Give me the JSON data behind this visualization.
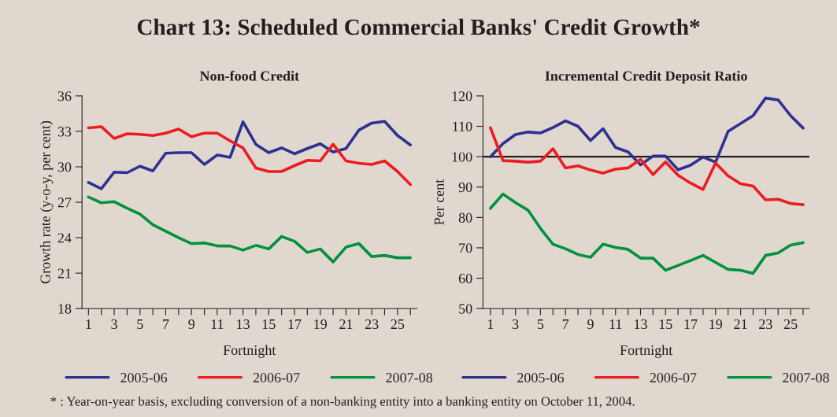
{
  "chart_data": [
    {
      "type": "line",
      "title": "Non-food Credit",
      "xlabel": "Fortnight",
      "ylabel": "Growth rate (y-o-y, per cent)",
      "annotations": [
        "Chart 13: Scheduled Commercial Banks' Credit Growth*",
        "* : Year-on-year basis, excluding conversion of a non-banking entity into a banking entity on October 11, 2004."
      ],
      "x": [
        1,
        2,
        3,
        4,
        5,
        6,
        7,
        8,
        9,
        10,
        11,
        12,
        13,
        14,
        15,
        16,
        17,
        18,
        19,
        20,
        21,
        22,
        23,
        24,
        25,
        26
      ],
      "series": [
        {
          "name": "2005-06",
          "color": "#2e3192",
          "values": [
            28.67,
            28.15,
            29.55,
            29.5,
            30.05,
            29.65,
            31.15,
            31.2,
            31.2,
            30.2,
            31.0,
            30.8,
            33.8,
            31.9,
            31.2,
            31.6,
            31.1,
            31.55,
            31.95,
            31.25,
            31.55,
            33.1,
            33.7,
            33.85,
            32.65,
            31.85
          ]
        },
        {
          "name": "2006-07",
          "color": "#ed1c24",
          "values": [
            33.3,
            33.4,
            32.4,
            32.8,
            32.75,
            32.65,
            32.85,
            33.2,
            32.55,
            32.85,
            32.85,
            32.2,
            31.6,
            29.9,
            29.6,
            29.6,
            30.1,
            30.55,
            30.5,
            31.9,
            30.5,
            30.3,
            30.2,
            30.5,
            29.6,
            28.5
          ]
        },
        {
          "name": "2007-08",
          "color": "#00923f",
          "values": [
            27.45,
            26.95,
            27.05,
            26.5,
            26.0,
            25.1,
            24.55,
            24.0,
            23.5,
            23.55,
            23.3,
            23.3,
            22.95,
            23.35,
            23.05,
            24.1,
            23.7,
            22.75,
            23.05,
            21.95,
            23.2,
            23.5,
            22.4,
            22.5,
            22.3,
            22.3
          ]
        }
      ],
      "xlim": [
        0.5,
        26.5
      ],
      "xticks": [
        1,
        {
          "value": 2,
          "label": null
        },
        3,
        {
          "value": 4,
          "label": null
        },
        5,
        {
          "value": 6,
          "label": null
        },
        7,
        {
          "value": 8,
          "label": null
        },
        9,
        {
          "value": 10,
          "label": null
        },
        11,
        {
          "value": 12,
          "label": null
        },
        13,
        {
          "value": 14,
          "label": null
        },
        15,
        {
          "value": 16,
          "label": null
        },
        17,
        {
          "value": 18,
          "label": null
        },
        19,
        {
          "value": 20,
          "label": null
        },
        21,
        {
          "value": 22,
          "label": null
        },
        23,
        {
          "value": 24,
          "label": null
        },
        25,
        {
          "value": 26,
          "label": null
        }
      ],
      "ylim": [
        18,
        36
      ],
      "yticks": [
        18,
        21,
        24,
        27,
        30,
        33,
        36
      ],
      "grid": false,
      "legend": "bottom",
      "marker": "none",
      "line_style": "solid"
    },
    {
      "type": "line",
      "title": "Incremental Credit Deposit Ratio",
      "xlabel": "Fortnight",
      "ylabel": "Per cent",
      "x": [
        1,
        2,
        3,
        4,
        5,
        6,
        7,
        8,
        9,
        10,
        11,
        12,
        13,
        14,
        15,
        16,
        17,
        18,
        19,
        20,
        21,
        22,
        23,
        24,
        25,
        26
      ],
      "series": [
        {
          "name": "2005-06",
          "color": "#2e3192",
          "values": [
            100,
            104.3,
            107.3,
            108.1,
            107.8,
            109.6,
            111.8,
            110.0,
            105.3,
            109.2,
            103.0,
            101.6,
            97.3,
            100.2,
            100.2,
            95.7,
            97.2,
            99.9,
            98.2,
            108.3,
            110.9,
            113.5,
            119.3,
            118.7,
            113.5,
            109.4
          ]
        },
        {
          "name": "2006-07",
          "color": "#ed1c24",
          "values": [
            109.5,
            98.7,
            98.5,
            98.2,
            98.5,
            102.6,
            96.3,
            97.0,
            95.6,
            94.6,
            95.9,
            96.3,
            99.1,
            94.1,
            98.3,
            93.9,
            91.3,
            89.2,
            97.9,
            93.7,
            91.1,
            90.3,
            85.8,
            86.0,
            84.6,
            84.2
          ]
        },
        {
          "name": "2007-08",
          "color": "#00923f",
          "values": [
            83.0,
            87.7,
            84.9,
            82.4,
            76.4,
            71.2,
            69.7,
            67.8,
            66.9,
            71.2,
            70.1,
            69.5,
            66.6,
            66.6,
            62.6,
            64.2,
            65.8,
            67.5,
            65.2,
            62.9,
            62.6,
            61.6,
            67.5,
            68.3,
            70.9,
            71.7
          ]
        }
      ],
      "ref_lines": [
        {
          "axis": "y",
          "value": 100,
          "color": "#231f20"
        }
      ],
      "xlim": [
        0.4,
        26.5
      ],
      "xticks": [
        1,
        {
          "value": 2,
          "label": null
        },
        3,
        {
          "value": 4,
          "label": null
        },
        5,
        {
          "value": 6,
          "label": null
        },
        7,
        {
          "value": 8,
          "label": null
        },
        9,
        {
          "value": 10,
          "label": null
        },
        11,
        {
          "value": 12,
          "label": null
        },
        13,
        {
          "value": 14,
          "label": null
        },
        15,
        {
          "value": 16,
          "label": null
        },
        17,
        {
          "value": 18,
          "label": null
        },
        19,
        {
          "value": 20,
          "label": null
        },
        21,
        {
          "value": 22,
          "label": null
        },
        23,
        {
          "value": 24,
          "label": null
        },
        25,
        {
          "value": 26,
          "label": null
        }
      ],
      "ylim": [
        50,
        120
      ],
      "yticks": [
        50,
        60,
        70,
        80,
        90,
        100,
        110,
        120
      ],
      "grid": false,
      "legend": "bottom",
      "marker": "none",
      "line_style": "solid"
    }
  ]
}
